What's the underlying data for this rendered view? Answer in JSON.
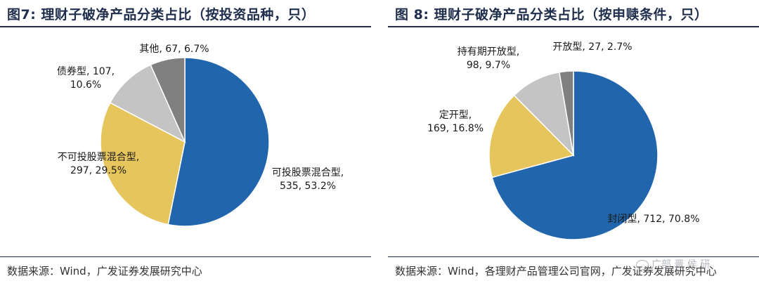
{
  "panels": [
    {
      "title": "图7:  理财子破净产品分类占比（按投资品种，只）",
      "source": "数据来源：Wind，广发证券发展研究中心"
    },
    {
      "title": "图 8:  理财子破净产品分类占比（按申赎条件，只）",
      "source": "数据来源：Wind，各理财产品管理公司官网，广发证券发展研究中心"
    }
  ],
  "watermark": "广部 晋 侯 研",
  "chart_data": [
    {
      "type": "pie",
      "slices": [
        {
          "name": "可投股票混合型",
          "value": 535,
          "percent": "53.2%",
          "color": "#2166ac"
        },
        {
          "name": "不可投股票混合型",
          "value": 297,
          "percent": "29.5%",
          "color": "#e6c65c"
        },
        {
          "name": "债券型",
          "value": 107,
          "percent": "10.6%",
          "color": "#c4c4c4"
        },
        {
          "name": "其他",
          "value": 67,
          "percent": "6.7%",
          "color": "#808080"
        }
      ]
    },
    {
      "type": "pie",
      "slices": [
        {
          "name": "封闭型",
          "value": 712,
          "percent": "70.8%",
          "color": "#2166ac"
        },
        {
          "name": "定开型",
          "value": 169,
          "percent": "16.8%",
          "color": "#e6c65c"
        },
        {
          "name": "持有期开放型",
          "value": 98,
          "percent": "9.7%",
          "color": "#c4c4c4"
        },
        {
          "name": "开放型",
          "value": 27,
          "percent": "2.7%",
          "color": "#808080"
        }
      ]
    }
  ]
}
